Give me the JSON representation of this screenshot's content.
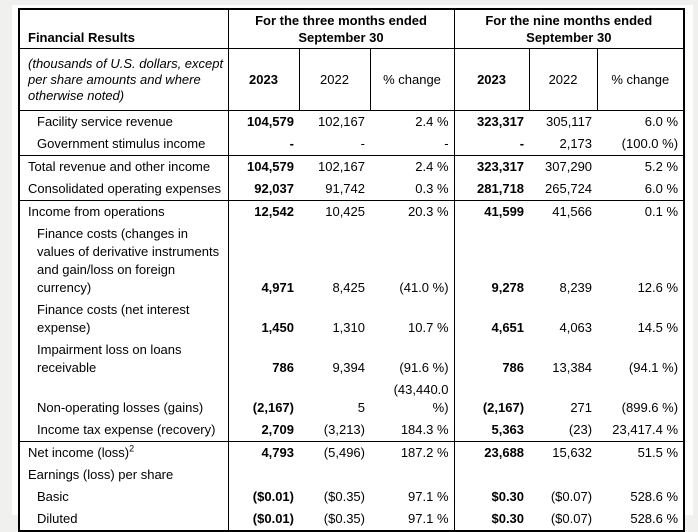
{
  "table": {
    "title": "Financial Results",
    "note": "(thousands of U.S. dollars, except per share amounts and where otherwise noted)",
    "groups": [
      {
        "title": "For the three months ended September 30",
        "columns": [
          "2023",
          "2022",
          "% change"
        ]
      },
      {
        "title": "For the nine months ended September 30",
        "columns": [
          "2023",
          "2022",
          "% change"
        ]
      }
    ],
    "column_keys": [
      "three-months-2023",
      "three-months-2022",
      "three-months-pct-change",
      "nine-months-2023",
      "nine-months-2022",
      "nine-months-pct-change"
    ],
    "rows": [
      {
        "label": "Facility service revenue",
        "indent": 1,
        "rule_above": false,
        "values": [
          "104,579",
          "102,167",
          "2.4 %",
          "323,317",
          "305,117",
          "6.0 %"
        ]
      },
      {
        "label": "Government stimulus income",
        "indent": 1,
        "rule_above": false,
        "values": [
          "-",
          "-",
          "-",
          "-",
          "2,173",
          "(100.0 %)"
        ]
      },
      {
        "label": "Total revenue and other income",
        "indent": 0,
        "rule_above": true,
        "values": [
          "104,579",
          "102,167",
          "2.4 %",
          "323,317",
          "307,290",
          "5.2 %"
        ]
      },
      {
        "label": "Consolidated operating expenses",
        "indent": 0,
        "rule_above": false,
        "values": [
          "92,037",
          "91,742",
          "0.3 %",
          "281,718",
          "265,724",
          "6.0 %"
        ]
      },
      {
        "label": "Income from operations",
        "indent": 0,
        "rule_above": true,
        "values": [
          "12,542",
          "10,425",
          "20.3 %",
          "41,599",
          "41,566",
          "0.1 %"
        ]
      },
      {
        "label": "Finance costs (changes in values of derivative instruments and gain/loss on foreign currency)",
        "indent": 1,
        "rule_above": false,
        "values": [
          "4,971",
          "8,425",
          "(41.0 %)",
          "9,278",
          "8,239",
          "12.6 %"
        ]
      },
      {
        "label": "Finance costs (net interest expense)",
        "indent": 1,
        "rule_above": false,
        "values": [
          "1,450",
          "1,310",
          "10.7 %",
          "4,651",
          "4,063",
          "14.5 %"
        ]
      },
      {
        "label": "Impairment loss on loans receivable",
        "indent": 1,
        "rule_above": false,
        "values": [
          "786",
          "9,394",
          "(91.6 %)",
          "786",
          "13,384",
          "(94.1 %)"
        ]
      },
      {
        "label": "Non-operating losses (gains)",
        "indent": 1,
        "rule_above": false,
        "values": [
          "(2,167)",
          "5",
          "(43,440.0 %)",
          "(2,167)",
          "271",
          "(899.6 %)"
        ]
      },
      {
        "label": "Income tax expense (recovery)",
        "indent": 1,
        "rule_above": false,
        "values": [
          "2,709",
          "(3,213)",
          "184.3 %",
          "5,363",
          "(23)",
          "23,417.4 %"
        ]
      },
      {
        "label": "Net income (loss)",
        "sup": "2",
        "indent": 0,
        "rule_above": true,
        "values": [
          "4,793",
          "(5,496)",
          "187.2 %",
          "23,688",
          "15,632",
          "51.5 %"
        ]
      },
      {
        "label": "Earnings (loss) per share",
        "indent": 0,
        "rule_above": false,
        "values": [
          "",
          "",
          "",
          "",
          "",
          ""
        ]
      },
      {
        "label": "Basic",
        "indent": 1,
        "rule_above": false,
        "values": [
          "($0.01)",
          "($0.35)",
          "97.1 %",
          "$0.30",
          "($0.07)",
          "528.6 %"
        ]
      },
      {
        "label": "Diluted",
        "indent": 1,
        "rule_above": false,
        "values": [
          "($0.01)",
          "($0.35)",
          "97.1 %",
          "$0.30",
          "($0.07)",
          "528.6 %"
        ]
      }
    ]
  }
}
